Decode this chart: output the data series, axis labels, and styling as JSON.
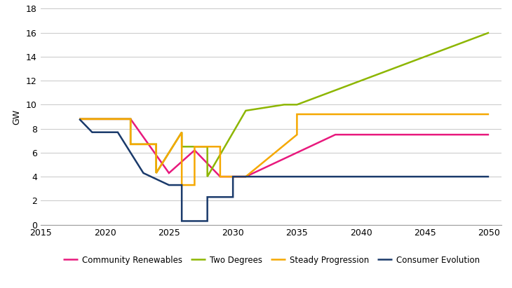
{
  "ylabel": "GW",
  "ylim": [
    0,
    18
  ],
  "yticks": [
    0,
    2,
    4,
    6,
    8,
    10,
    12,
    14,
    16,
    18
  ],
  "xlim": [
    2015,
    2051
  ],
  "xticks": [
    2015,
    2020,
    2025,
    2030,
    2035,
    2040,
    2045,
    2050
  ],
  "background_color": "#ffffff",
  "grid_color": "#c8c8c8",
  "series": [
    {
      "label": "Community Renewables",
      "color": "#e8197d",
      "x": [
        2018,
        2022,
        2022,
        2025,
        2025,
        2027,
        2027,
        2029,
        2029,
        2031,
        2031,
        2038,
        2038,
        2050
      ],
      "y": [
        8.8,
        8.8,
        8.8,
        4.3,
        4.3,
        6.2,
        6.2,
        4.0,
        4.0,
        4.0,
        4.0,
        7.5,
        7.5,
        7.5
      ]
    },
    {
      "label": "Two Degrees",
      "color": "#8db600",
      "x": [
        2018,
        2022,
        2022,
        2024,
        2024,
        2026,
        2026,
        2028,
        2028,
        2031,
        2031,
        2034,
        2034,
        2035,
        2035,
        2050
      ],
      "y": [
        8.8,
        8.8,
        6.7,
        6.7,
        4.3,
        7.7,
        6.5,
        6.5,
        4.0,
        9.5,
        9.5,
        10.0,
        10.0,
        10.0,
        10.0,
        16.0
      ]
    },
    {
      "label": "Steady Progression",
      "color": "#f5a800",
      "x": [
        2018,
        2022,
        2022,
        2024,
        2024,
        2026,
        2026,
        2027,
        2027,
        2029,
        2029,
        2031,
        2031,
        2035,
        2035,
        2037,
        2037,
        2050
      ],
      "y": [
        8.8,
        8.8,
        6.7,
        6.7,
        4.3,
        7.7,
        3.3,
        3.3,
        6.5,
        6.5,
        4.0,
        4.0,
        4.0,
        7.5,
        9.2,
        9.2,
        9.2,
        9.2
      ]
    },
    {
      "label": "Consumer Evolution",
      "color": "#1a3a6b",
      "x": [
        2018,
        2019,
        2019,
        2021,
        2021,
        2023,
        2023,
        2025,
        2025,
        2026,
        2026,
        2028,
        2028,
        2030,
        2030,
        2032,
        2032,
        2050
      ],
      "y": [
        8.8,
        7.7,
        7.7,
        7.7,
        7.7,
        4.3,
        4.3,
        3.3,
        3.3,
        3.3,
        0.3,
        0.3,
        2.3,
        2.3,
        4.0,
        4.0,
        4.0,
        4.0
      ]
    }
  ],
  "legend_fontsize": 8.5,
  "axis_fontsize": 9,
  "tick_fontsize": 9,
  "line_width": 1.8
}
